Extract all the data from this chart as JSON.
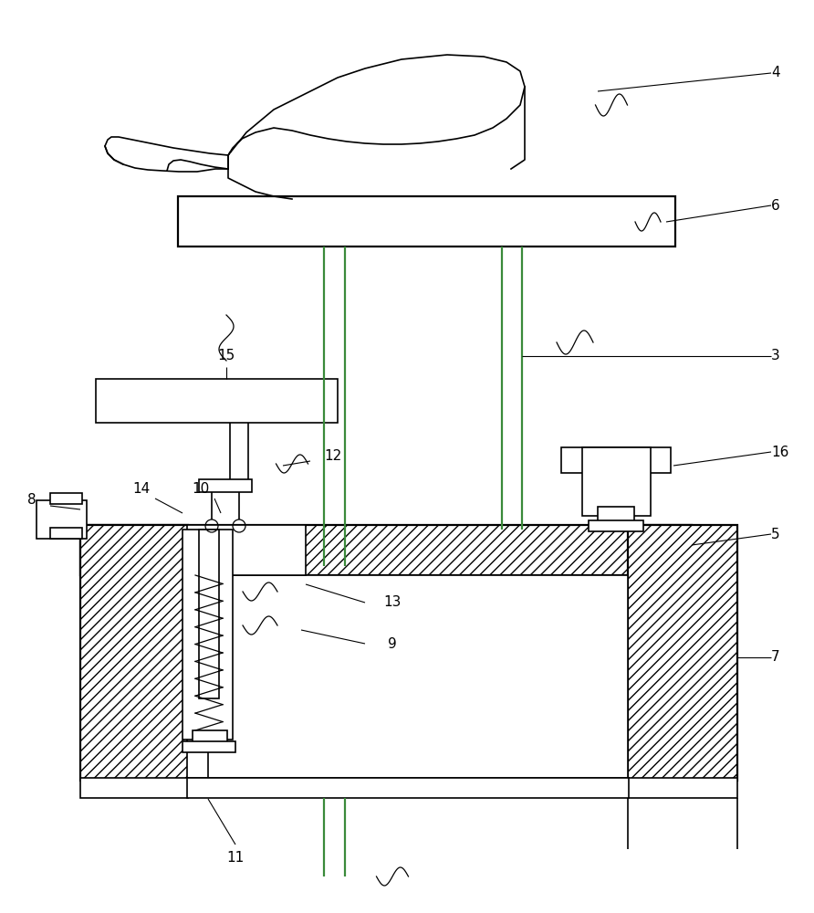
{
  "bg_color": "#ffffff",
  "lc": "#000000",
  "gc": "#3a8a3a",
  "lw": 1.2,
  "lw2": 1.6,
  "label_fs": 11
}
